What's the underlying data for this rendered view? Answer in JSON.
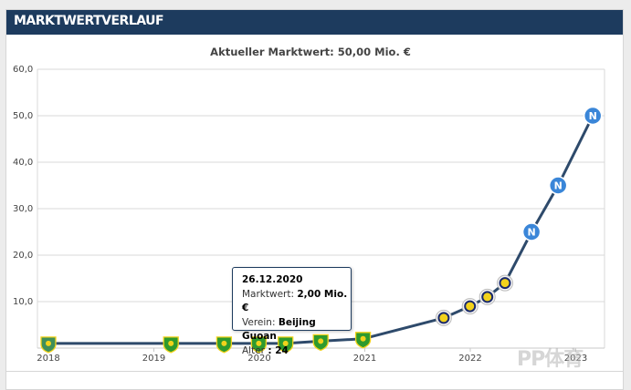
{
  "header": {
    "title": "Marktwertverlauf"
  },
  "chart_data": {
    "type": "line",
    "title": "Aktueller Marktwert: 50,00 Mio. €",
    "xlabel": "",
    "ylabel": "",
    "ylim": [
      0,
      60
    ],
    "y_ticks": [
      "10,0",
      "20,0",
      "30,0",
      "40,0",
      "50,0",
      "60,0"
    ],
    "x_ticks": [
      "2018",
      "2019",
      "2020",
      "2021",
      "2022",
      "2023"
    ],
    "grid": true,
    "series": [
      {
        "values": [
          {
            "date": "2018-01-01",
            "value": 1.0,
            "club": "Tianjin Teda"
          },
          {
            "date": "2019-03-01",
            "value": 1.0,
            "club": "Beijing Guoan"
          },
          {
            "date": "2019-09-01",
            "value": 1.0,
            "club": "Beijing Guoan"
          },
          {
            "date": "2019-12-30",
            "value": 1.0,
            "club": "Beijing Guoan"
          },
          {
            "date": "2020-04-01",
            "value": 1.0,
            "club": "Beijing Guoan"
          },
          {
            "date": "2020-08-01",
            "value": 1.5,
            "club": "Beijing Guoan"
          },
          {
            "date": "2020-12-26",
            "value": 2.0,
            "club": "Beijing Guoan"
          },
          {
            "date": "2021-10-01",
            "value": 6.5,
            "club": "Fenerbahce"
          },
          {
            "date": "2021-12-31",
            "value": 9.0,
            "club": "Fenerbahce"
          },
          {
            "date": "2022-03-01",
            "value": 11.0,
            "club": "Fenerbahce"
          },
          {
            "date": "2022-05-01",
            "value": 14.0,
            "club": "Fenerbahce"
          },
          {
            "date": "2022-08-01",
            "value": 25.0,
            "club": "SSC Napoli"
          },
          {
            "date": "2022-11-01",
            "value": 35.0,
            "club": "SSC Napoli"
          },
          {
            "date": "2023-03-01",
            "value": 50.0,
            "club": "SSC Napoli"
          }
        ]
      }
    ],
    "club_colors": {
      "Tianjin Teda": "#3f8f5a",
      "Beijing Guoan": "#2e9a2e",
      "Fenerbahce": "#1a2a6c",
      "SSC Napoli": "#3a86d8"
    },
    "line_color": "#2e4a6b",
    "tooltip": {
      "date": "26.12.2020",
      "market_value_label": "Marktwert:",
      "market_value": "2,00 Mio. €",
      "club_label": "Verein:",
      "club": "Beijing Guoan",
      "age_label": "Alter",
      "age": ": 24"
    }
  },
  "watermark": "PP体育"
}
